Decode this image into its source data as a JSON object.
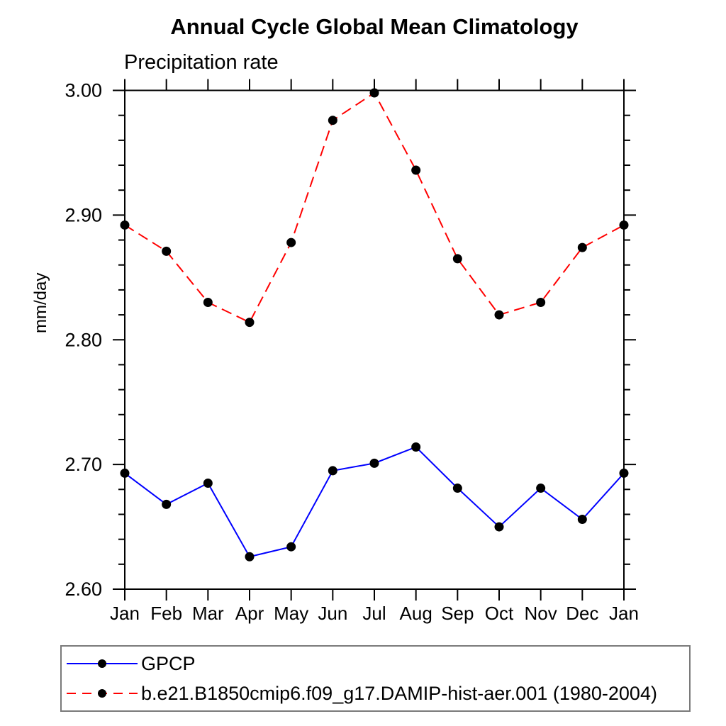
{
  "title": "Annual Cycle Global Mean Climatology",
  "subtitle": "Precipitation rate",
  "ylabel": "mm/day",
  "legend": {
    "position": "bottom",
    "items": [
      {
        "label": "GPCP",
        "color": "#0000ff",
        "dash": "solid",
        "marker": "filled-circle",
        "marker_color": "#000000"
      },
      {
        "label": "b.e21.B1850cmip6.f09_g17.DAMIP-hist-aer.001 (1980-2004)",
        "color": "#ff0000",
        "dash": "dashed",
        "marker": "filled-circle",
        "marker_color": "#000000"
      }
    ]
  },
  "chart_data": {
    "type": "line",
    "title": "Annual Cycle Global Mean Climatology",
    "subtitle": "Precipitation rate",
    "xlabel": "",
    "ylabel": "mm/day",
    "categories": [
      "Jan",
      "Feb",
      "Mar",
      "Apr",
      "May",
      "Jun",
      "Jul",
      "Aug",
      "Sep",
      "Oct",
      "Nov",
      "Dec",
      "Jan"
    ],
    "series": [
      {
        "name": "GPCP",
        "color": "#0000ff",
        "line_style": "solid",
        "marker": "filled-circle",
        "marker_color": "#000000",
        "values": [
          2.693,
          2.668,
          2.685,
          2.626,
          2.634,
          2.695,
          2.701,
          2.714,
          2.681,
          2.65,
          2.681,
          2.656,
          2.693
        ]
      },
      {
        "name": "b.e21.B1850cmip6.f09_g17.DAMIP-hist-aer.001 (1980-2004)",
        "color": "#ff0000",
        "line_style": "dashed",
        "marker": "filled-circle",
        "marker_color": "#000000",
        "values": [
          2.892,
          2.871,
          2.83,
          2.814,
          2.878,
          2.976,
          2.998,
          2.936,
          2.865,
          2.82,
          2.83,
          2.874,
          2.892
        ]
      }
    ],
    "ylim": [
      2.6,
      3.0
    ],
    "yticks": [
      2.6,
      2.7,
      2.8,
      2.9,
      3.0
    ],
    "ytick_labels": [
      "2.60",
      "2.70",
      "2.80",
      "2.90",
      "3.00"
    ],
    "y_minor_step": 0.02,
    "grid": false,
    "ticks_direction": "out",
    "legend_position": "bottom"
  }
}
